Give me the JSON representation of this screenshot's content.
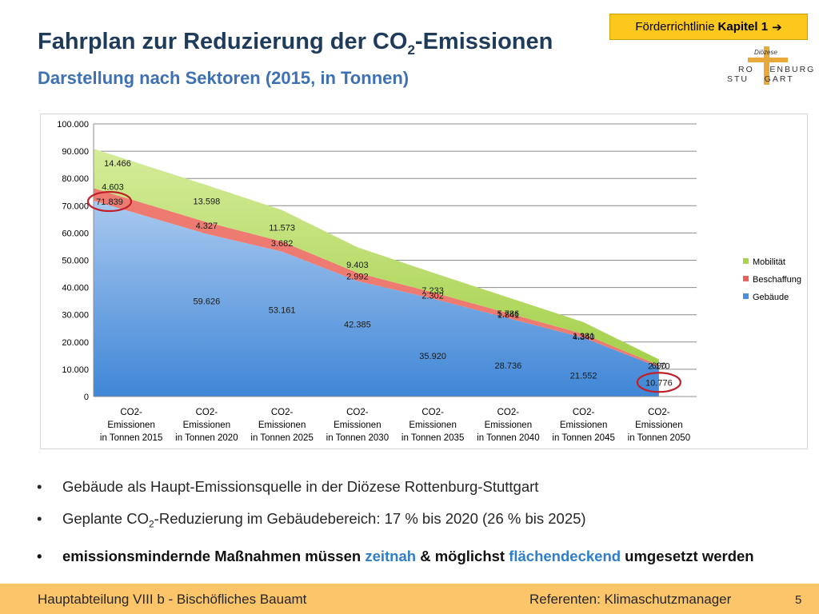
{
  "header": {
    "title_main": "Fahrplan zur Reduzierung der CO",
    "title_sub": "2",
    "title_end": "-Emissionen",
    "subtitle": "Darstellung nach Sektoren (2015, in Tonnen)"
  },
  "link": {
    "prefix": "Förderrichtlinie",
    "bold": "Kapitel 1",
    "arrow": "➔"
  },
  "logo": {
    "line1": "Diözese",
    "line2": "RO    ENBURG-",
    "line3": "STU    GART"
  },
  "chart_data": {
    "type": "area",
    "stacked": true,
    "categories": [
      "CO2-Emissionen in Tonnen 2015",
      "CO2-Emissionen in Tonnen 2020",
      "CO2-Emissionen in Tonnen 2025",
      "CO2-Emissionen in Tonnen 2030",
      "CO2-Emissionen in Tonnen 2035",
      "CO2-Emissionen in Tonnen 2040",
      "CO2-Emissionen in Tonnen 2045",
      "CO2-Emissionen in Tonnen 2050"
    ],
    "category_lines": [
      [
        "CO2-",
        "Emissionen",
        "in Tonnen 2015"
      ],
      [
        "CO2-",
        "Emissionen",
        "in Tonnen 2020"
      ],
      [
        "CO2-",
        "Emissionen",
        "in Tonnen 2025"
      ],
      [
        "CO2-",
        "Emissionen",
        "in Tonnen 2030"
      ],
      [
        "CO2-",
        "Emissionen",
        "in Tonnen 2035"
      ],
      [
        "CO2-",
        "Emissionen",
        "in Tonnen 2040"
      ],
      [
        "CO2-",
        "Emissionen",
        "in Tonnen 2045"
      ],
      [
        "CO2-",
        "Emissionen",
        "in Tonnen 2050"
      ]
    ],
    "series": [
      {
        "name": "Gebäude",
        "color": "#4a8fd9",
        "values": [
          71839,
          59626,
          53161,
          42385,
          35920,
          28736,
          21552,
          10776
        ],
        "labels": [
          "71.839",
          "59.626",
          "53.161",
          "42.385",
          "35.920",
          "28.736",
          "21.552",
          "10.776"
        ]
      },
      {
        "name": "Beschaffung",
        "color": "#e8625c",
        "values": [
          4603,
          4327,
          3682,
          2992,
          2302,
          1841,
          1381,
          690
        ],
        "labels": [
          "4.603",
          "4.327",
          "3.682",
          "2.992",
          "2.302",
          "1.841",
          "1.381",
          "690"
        ]
      },
      {
        "name": "Mobilität",
        "color": "#a9d44c",
        "values": [
          14466,
          13598,
          11573,
          9403,
          7233,
          5786,
          4340,
          2170
        ],
        "labels": [
          "14.466",
          "13.598",
          "11.573",
          "9.403",
          "7.233",
          "5.786",
          "4.340",
          "2.170"
        ]
      }
    ],
    "legend_order": [
      "Mobilität",
      "Beschaffung",
      "Gebäude"
    ],
    "legend_position": "right",
    "ylim": [
      0,
      100000
    ],
    "yticks": [
      0,
      10000,
      20000,
      30000,
      40000,
      50000,
      60000,
      70000,
      80000,
      90000,
      100000
    ],
    "ytick_labels": [
      "0",
      "10.000",
      "20.000",
      "30.000",
      "40.000",
      "50.000",
      "60.000",
      "70.000",
      "80.000",
      "90.000",
      "100.000"
    ],
    "grid": true,
    "highlighted": [
      "71.839",
      "10.776"
    ],
    "highlight_color": "#c0202a"
  },
  "bullets": [
    {
      "text": "Gebäude als Haupt-Emissionsquelle in der Diözese Rottenburg-Stuttgart"
    },
    {
      "pre": "Geplante CO",
      "sub": "2",
      "post": "-Reduzierung im Gebäudebereich: 17 % bis 2020 (26 % bis 2025)"
    },
    {
      "p1": "emissionsmindernde Maßnahmen müssen ",
      "h1": "zeitnah",
      "p2": " & möglichst ",
      "h2": "flächendeckend",
      "p3": " umgesetzt werden"
    }
  ],
  "bullet_symbol": "•",
  "footer": {
    "left": "Hauptabteilung VIII b - Bischöfliches Bauamt",
    "right": "Referenten: Klimaschutzmanager",
    "page": "5"
  }
}
